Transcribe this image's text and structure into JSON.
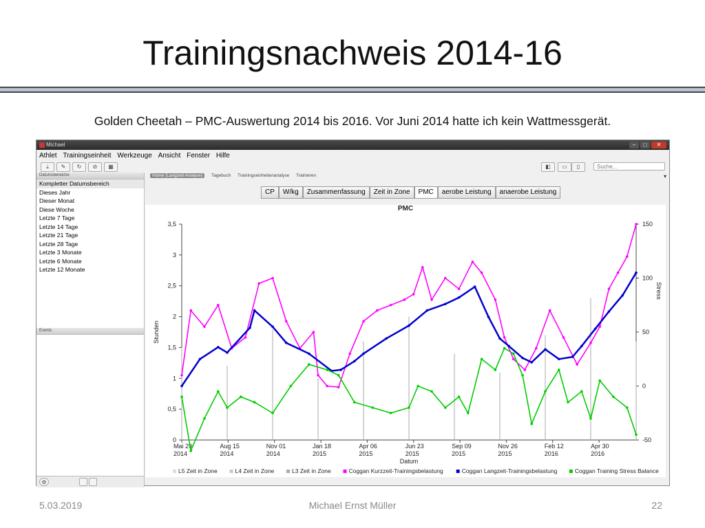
{
  "slide": {
    "title": "Trainingsnachweis 2014-16",
    "caption": "Golden Cheetah – PMC-Auswertung  2014 bis 2016. Vor Juni 2014 hatte ich kein Wattmessgerät.",
    "footer_date": "5.03.2019",
    "footer_author": "Michael Ernst Müller",
    "footer_page": "22"
  },
  "app": {
    "window_title": "Michael",
    "menu": [
      "Athlet",
      "Trainingseinheit",
      "Werkzeuge",
      "Ansicht",
      "Fenster",
      "Hilfe"
    ],
    "search_placeholder": "Suche...",
    "left_header": "Datumsbereiche",
    "date_ranges": [
      "Kompletter Datumsbereich",
      "Dieses Jahr",
      "Dieser Monat",
      "Diese Woche",
      "Letzte 7 Tage",
      "Letzte 14 Tage",
      "Letzte 21 Tage",
      "Letzte 28 Tage",
      "Letzte 3 Monate",
      "Letzte 6 Monate",
      "Letzte 12 Monate"
    ],
    "events_header": "Events",
    "view_tabs": [
      "Home (Langzeit-Analyse)",
      "Tagebuch",
      "Trainingseinheitenanalyse",
      "Trainieren"
    ],
    "chart_tabs": [
      "CP",
      "W/kg",
      "Zusammenfassung",
      "Zeit in Zone",
      "PMC",
      "aerobe Leistung",
      "anaerobe Leistung"
    ],
    "active_chart_tab": "PMC"
  },
  "chart_data": {
    "type": "line",
    "title": "PMC",
    "xlabel": "Datum",
    "ylabel": "Stunden",
    "y2label": "Stress",
    "x_ticks": [
      {
        "l1": "Mai 29",
        "l2": "2014"
      },
      {
        "l1": "Aug 15",
        "l2": "2014"
      },
      {
        "l1": "Nov 01",
        "l2": "2014"
      },
      {
        "l1": "Jan 18",
        "l2": "2015"
      },
      {
        "l1": "Apr 06",
        "l2": "2015"
      },
      {
        "l1": "Jun 23",
        "l2": "2015"
      },
      {
        "l1": "Sep 09",
        "l2": "2015"
      },
      {
        "l1": "Nov 26",
        "l2": "2015"
      },
      {
        "l1": "Feb 12",
        "l2": "2016"
      },
      {
        "l1": "Apr 30",
        "l2": "2016"
      }
    ],
    "ylim": [
      0,
      3.5
    ],
    "y_ticks": [
      "0",
      "0,5",
      "1",
      "1,5",
      "2",
      "2,5",
      "3",
      "3,5"
    ],
    "y2lim": [
      -50,
      150
    ],
    "y2_ticks": [
      "-50",
      "0",
      "50",
      "100",
      "150"
    ],
    "x_date_range": [
      "2014-05-29",
      "2016-07-20"
    ],
    "series": [
      {
        "name": "L5 Zeit in Zone",
        "axis": "left",
        "color": "#dddddd",
        "values": [
          [
            0.0,
            0.4
          ],
          [
            0.1,
            0.3
          ],
          [
            0.2,
            0.5
          ],
          [
            0.3,
            0.2
          ],
          [
            0.4,
            0.6
          ],
          [
            0.5,
            0.4
          ],
          [
            0.6,
            0.3
          ],
          [
            0.7,
            0.5
          ],
          [
            0.8,
            0.4
          ],
          [
            0.9,
            0.6
          ],
          [
            1.0,
            0.3
          ]
        ]
      },
      {
        "name": "L4 Zeit in Zone",
        "axis": "left",
        "color": "#c8c8c8",
        "values": [
          [
            0.0,
            0.8
          ],
          [
            0.1,
            0.6
          ],
          [
            0.2,
            1.0
          ],
          [
            0.3,
            0.5
          ],
          [
            0.4,
            0.9
          ],
          [
            0.5,
            1.0
          ],
          [
            0.6,
            0.7
          ],
          [
            0.7,
            0.6
          ],
          [
            0.8,
            0.9
          ],
          [
            0.9,
            1.2
          ],
          [
            1.0,
            0.8
          ]
        ]
      },
      {
        "name": "L3 Zeit in Zone",
        "axis": "left",
        "color": "#aaaaaa",
        "values": [
          [
            0.0,
            1.5
          ],
          [
            0.1,
            1.2
          ],
          [
            0.2,
            1.8
          ],
          [
            0.3,
            1.0
          ],
          [
            0.4,
            1.6
          ],
          [
            0.5,
            2.0
          ],
          [
            0.6,
            1.4
          ],
          [
            0.7,
            1.1
          ],
          [
            0.8,
            1.7
          ],
          [
            0.9,
            2.3
          ],
          [
            1.0,
            1.6
          ]
        ]
      },
      {
        "name": "Coggan Kurzzeit-Trainingsbelastung",
        "axis": "right",
        "color": "#ff00ff",
        "values": [
          [
            0.0,
            10
          ],
          [
            0.02,
            70
          ],
          [
            0.05,
            55
          ],
          [
            0.08,
            75
          ],
          [
            0.11,
            35
          ],
          [
            0.14,
            45
          ],
          [
            0.17,
            95
          ],
          [
            0.2,
            100
          ],
          [
            0.23,
            60
          ],
          [
            0.26,
            35
          ],
          [
            0.29,
            50
          ],
          [
            0.3,
            10
          ],
          [
            0.32,
            0
          ],
          [
            0.345,
            -1
          ],
          [
            0.37,
            30
          ],
          [
            0.4,
            60
          ],
          [
            0.43,
            70
          ],
          [
            0.46,
            75
          ],
          [
            0.49,
            80
          ],
          [
            0.51,
            85
          ],
          [
            0.53,
            110
          ],
          [
            0.55,
            80
          ],
          [
            0.58,
            100
          ],
          [
            0.61,
            90
          ],
          [
            0.64,
            115
          ],
          [
            0.66,
            105
          ],
          [
            0.69,
            80
          ],
          [
            0.71,
            45
          ],
          [
            0.73,
            25
          ],
          [
            0.755,
            15
          ],
          [
            0.78,
            35
          ],
          [
            0.81,
            70
          ],
          [
            0.84,
            45
          ],
          [
            0.87,
            20
          ],
          [
            0.9,
            40
          ],
          [
            0.92,
            55
          ],
          [
            0.94,
            90
          ],
          [
            0.96,
            105
          ],
          [
            0.98,
            120
          ],
          [
            1.0,
            150
          ]
        ]
      },
      {
        "name": "Coggan Langzeit-Trainingsbelastung",
        "axis": "right",
        "color": "#0000cc",
        "values": [
          [
            0.0,
            0
          ],
          [
            0.04,
            25
          ],
          [
            0.08,
            36
          ],
          [
            0.1,
            31
          ],
          [
            0.15,
            54
          ],
          [
            0.16,
            70
          ],
          [
            0.2,
            55
          ],
          [
            0.23,
            40
          ],
          [
            0.28,
            30
          ],
          [
            0.33,
            14
          ],
          [
            0.35,
            15
          ],
          [
            0.38,
            23
          ],
          [
            0.4,
            30
          ],
          [
            0.45,
            44
          ],
          [
            0.5,
            56
          ],
          [
            0.54,
            70
          ],
          [
            0.58,
            76
          ],
          [
            0.61,
            82
          ],
          [
            0.645,
            92
          ],
          [
            0.675,
            64
          ],
          [
            0.7,
            44
          ],
          [
            0.72,
            37
          ],
          [
            0.75,
            26
          ],
          [
            0.77,
            22
          ],
          [
            0.8,
            34
          ],
          [
            0.83,
            25
          ],
          [
            0.86,
            27
          ],
          [
            0.88,
            37
          ],
          [
            0.91,
            53
          ],
          [
            0.94,
            69
          ],
          [
            0.97,
            84
          ],
          [
            1.0,
            105
          ]
        ]
      },
      {
        "name": "Coggan Training Stress Balance",
        "axis": "right",
        "color": "#00cc00",
        "values": [
          [
            0.0,
            -10
          ],
          [
            0.02,
            -60
          ],
          [
            0.05,
            -30
          ],
          [
            0.08,
            -5
          ],
          [
            0.1,
            -20
          ],
          [
            0.13,
            -10
          ],
          [
            0.16,
            -15
          ],
          [
            0.2,
            -25
          ],
          [
            0.24,
            0
          ],
          [
            0.28,
            20
          ],
          [
            0.32,
            15
          ],
          [
            0.345,
            10
          ],
          [
            0.38,
            -15
          ],
          [
            0.42,
            -20
          ],
          [
            0.46,
            -25
          ],
          [
            0.5,
            -20
          ],
          [
            0.52,
            0
          ],
          [
            0.55,
            -5
          ],
          [
            0.58,
            -20
          ],
          [
            0.61,
            -10
          ],
          [
            0.63,
            -25
          ],
          [
            0.66,
            25
          ],
          [
            0.69,
            15
          ],
          [
            0.71,
            35
          ],
          [
            0.73,
            30
          ],
          [
            0.75,
            10
          ],
          [
            0.77,
            -35
          ],
          [
            0.8,
            -5
          ],
          [
            0.83,
            15
          ],
          [
            0.85,
            -15
          ],
          [
            0.88,
            -5
          ],
          [
            0.9,
            -30
          ],
          [
            0.92,
            5
          ],
          [
            0.95,
            -10
          ],
          [
            0.98,
            -20
          ],
          [
            1.0,
            -45
          ]
        ]
      }
    ],
    "legend_position": "bottom"
  }
}
